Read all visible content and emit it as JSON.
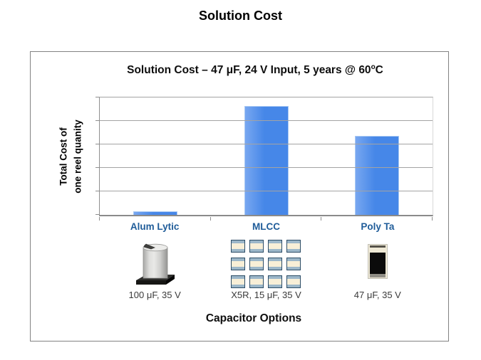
{
  "slide": {
    "title": "Solution Cost"
  },
  "chart_data": {
    "type": "bar",
    "title": "Solution Cost – 47 μF, 24 V Input, 5 years @ 60°C",
    "title_main": "Solution Cost – 47 μF, 24 V Input, 5 years @ 60",
    "title_sup": "o",
    "title_end": "C",
    "ylabel": "Total Cost of one reel quanity",
    "ylabel_line1": "Total Cost of",
    "ylabel_line2": "one reel quanity",
    "xlabel": "Capacitor Options",
    "categories": [
      "Alum Lytic",
      "MLCC",
      "Poly Ta"
    ],
    "values": [
      0.15,
      4.65,
      3.35
    ],
    "ylim": [
      0,
      5
    ],
    "gridline_intervals": 5,
    "y_tick_labels_shown": false,
    "legend_position": "none",
    "sub_labels": [
      "100 μF, 35 V",
      "X5R, 15 μF, 35 V",
      "47 μF, 35 V"
    ],
    "icons": [
      {
        "name": "aluminum-electrolytic-capacitor-icon"
      },
      {
        "name": "mlcc-chip-grid-icon",
        "rows": 3,
        "cols": 4
      },
      {
        "name": "tantalum-chip-capacitor-icon"
      }
    ]
  },
  "colors": {
    "bar_fill": "#4687e8",
    "bar_fill_light": "#78a7f0",
    "bar_border": "#a9c9f3",
    "category_label": "#1f5c99",
    "gridline": "#a3a3a3",
    "axis": "#8f8f8f",
    "frame_border": "#828282",
    "mlcc_body": "#f8efd7",
    "mlcc_terminal": "#9cb7c9",
    "mlcc_outline": "#2d4d66"
  }
}
